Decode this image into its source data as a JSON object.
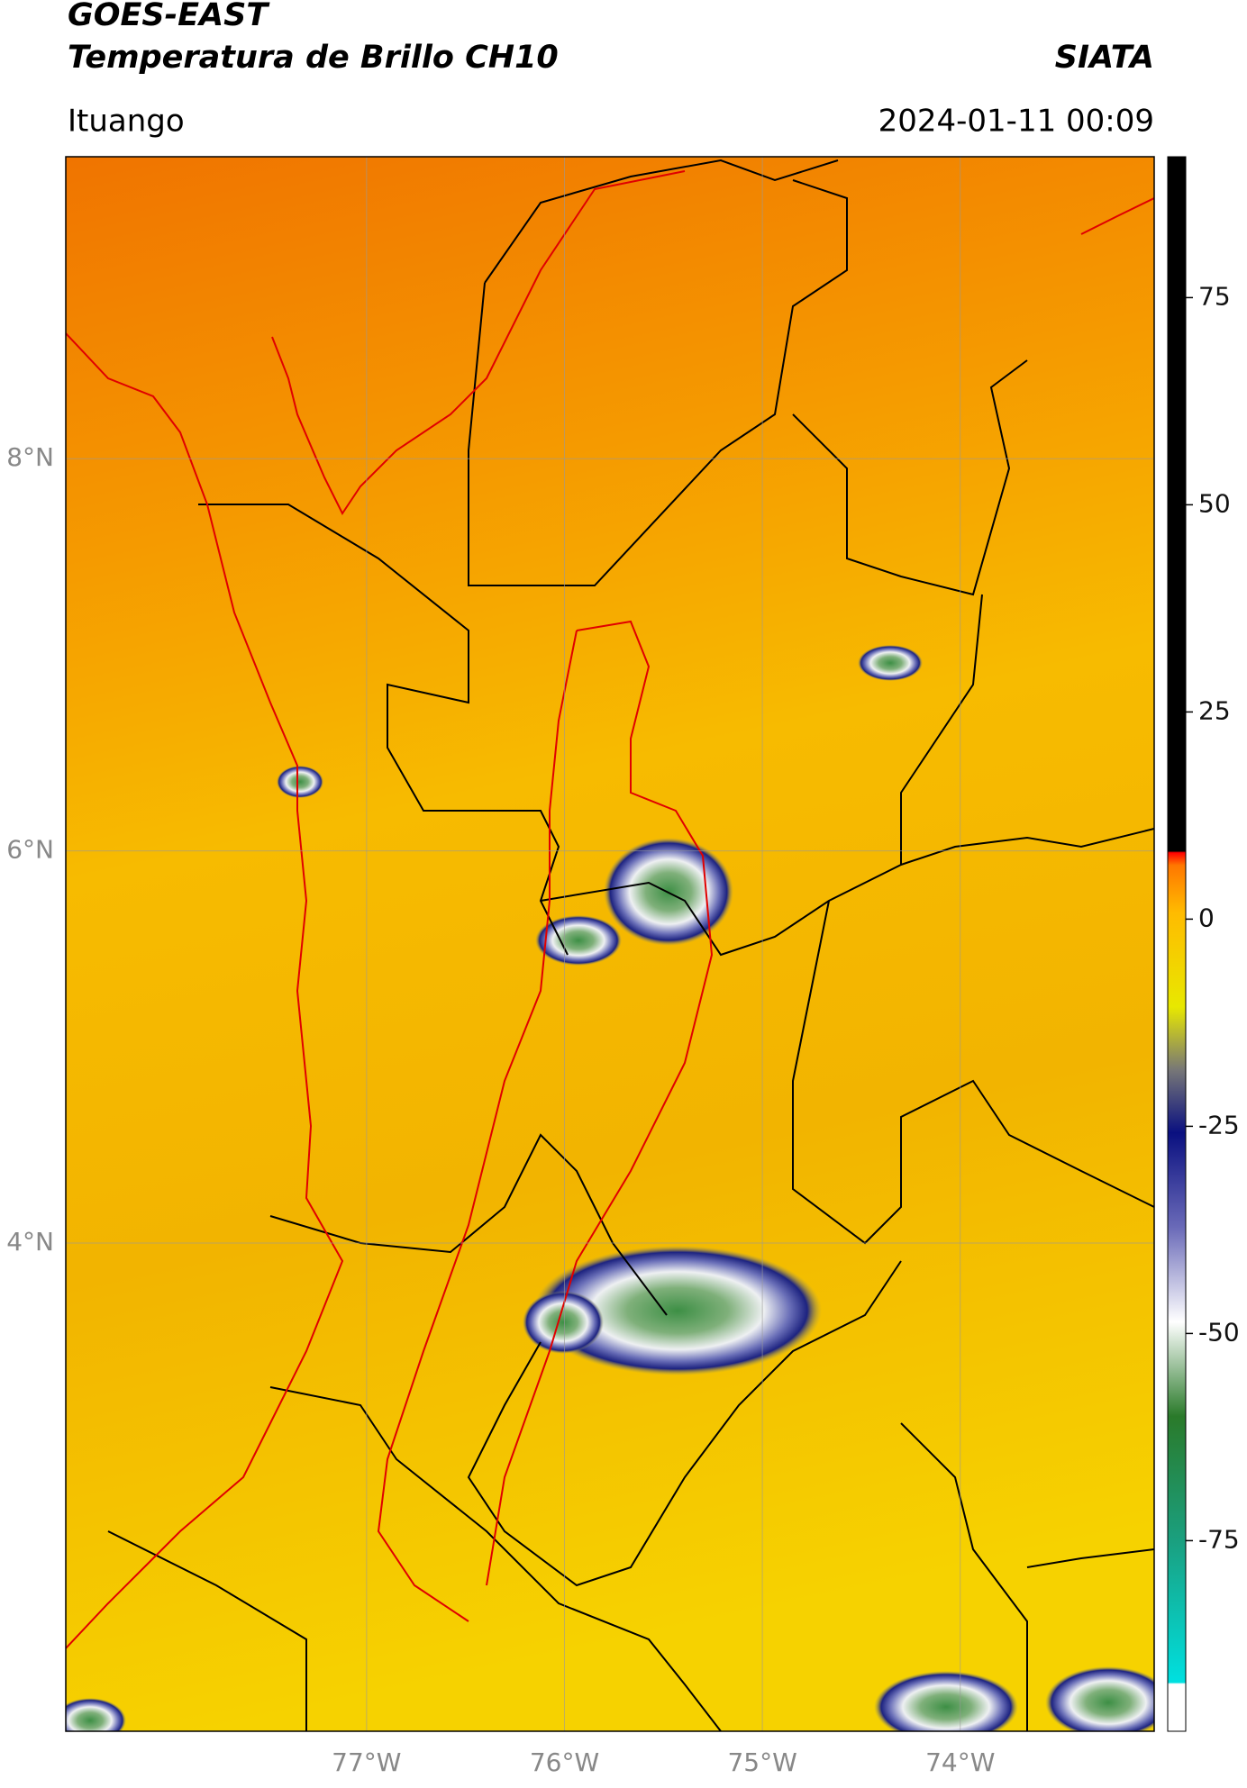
{
  "header": {
    "title": "GOES-EAST",
    "subtitle": "Temperatura de Brillo CH10",
    "source": "SIATA",
    "location": "Ituango",
    "datetime": "2024-01-11 00:09"
  },
  "map": {
    "xlim": [
      -78.52,
      -73.02
    ],
    "ylim": [
      1.51,
      9.54
    ],
    "xticks": [
      {
        "value": -77,
        "label": "77°W"
      },
      {
        "value": -76,
        "label": "76°W"
      },
      {
        "value": -75,
        "label": "75°W"
      },
      {
        "value": -74,
        "label": "74°W"
      }
    ],
    "yticks": [
      {
        "value": 8,
        "label": "8°N"
      },
      {
        "value": 6,
        "label": "6°N"
      },
      {
        "value": 4,
        "label": "4°N"
      }
    ],
    "grid": true
  },
  "colorbar": {
    "lim": [
      -98,
      92
    ],
    "ticks": [
      75,
      50,
      25,
      0,
      -25,
      -50,
      -75
    ]
  }
}
